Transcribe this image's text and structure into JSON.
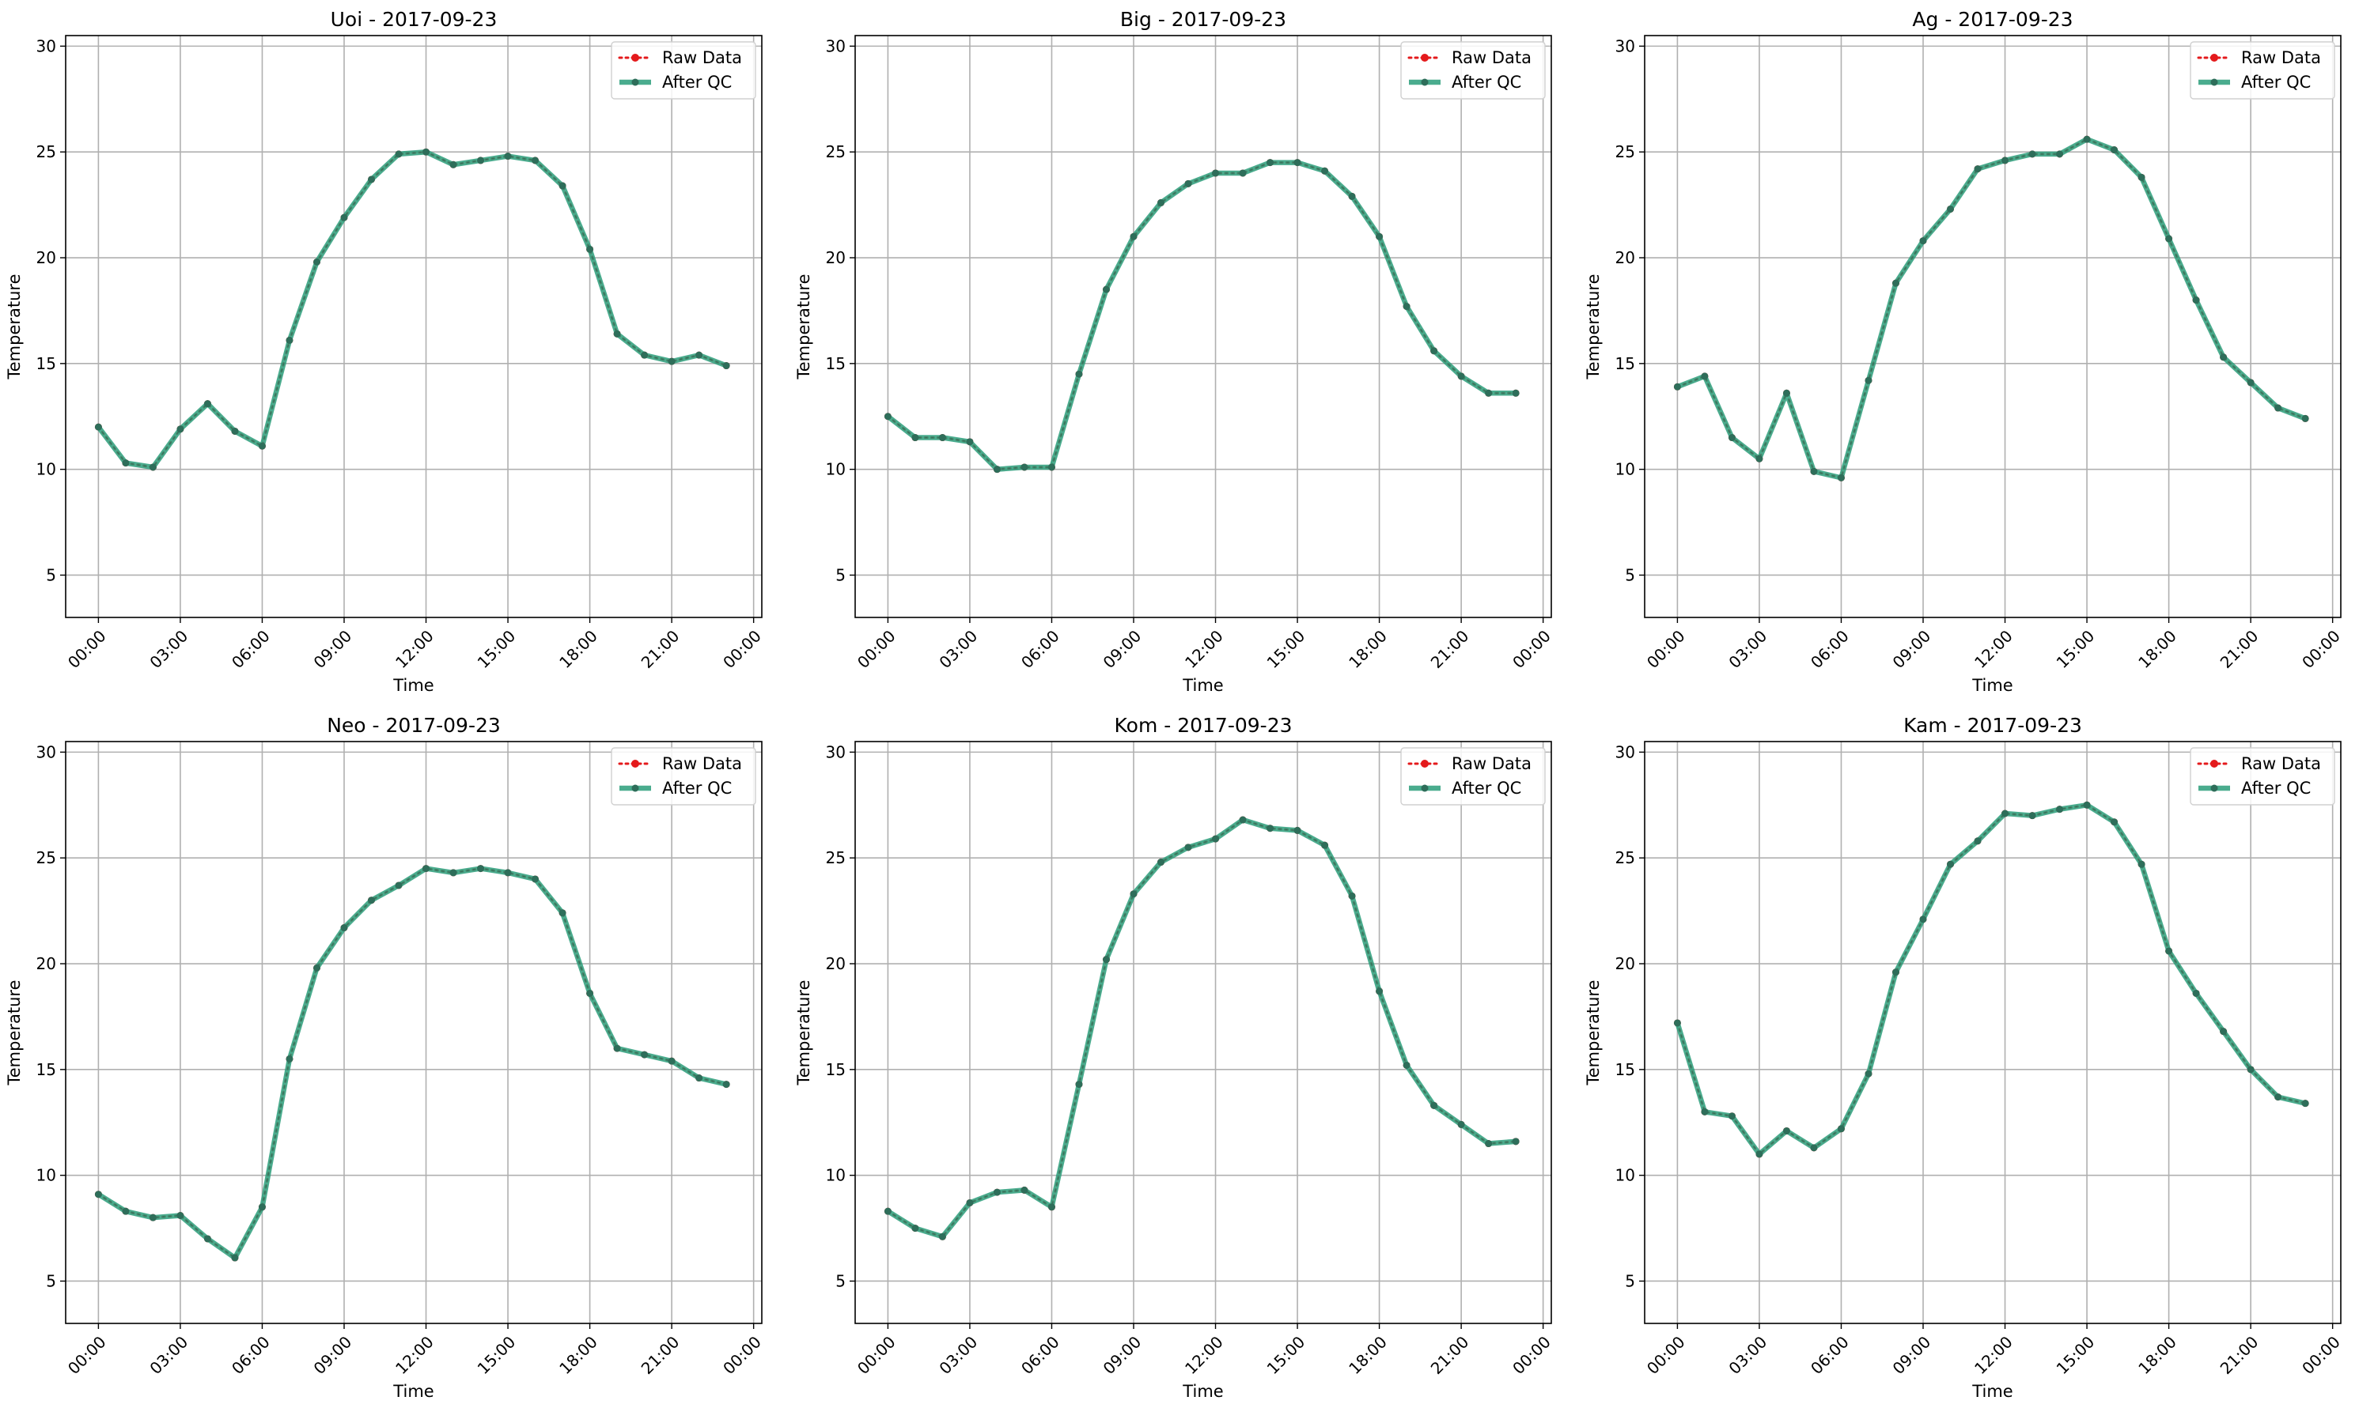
{
  "colors": {
    "raw": "#e41a1c",
    "qc": "#2a9d7a",
    "qc_marker": "#2e6e5a",
    "grid": "#b0b0b0",
    "axes": "#000000",
    "legend_border": "#d0d0d0"
  },
  "chart_data": [
    {
      "type": "line",
      "title": "Uoi - 2017-09-23",
      "xlabel": "Time",
      "ylabel": "Temperature",
      "ylim": [
        3,
        30.5
      ],
      "xlim_hours": [
        -1.2,
        24.3
      ],
      "grid": true,
      "legend_position": "top-right",
      "x_ticks": [
        "00:00",
        "03:00",
        "06:00",
        "09:00",
        "12:00",
        "15:00",
        "18:00",
        "21:00",
        "00:00"
      ],
      "y_ticks": [
        "5",
        "10",
        "15",
        "20",
        "25",
        "30"
      ],
      "x": [
        "00:00",
        "01:00",
        "02:00",
        "03:00",
        "04:00",
        "05:00",
        "06:00",
        "07:00",
        "08:00",
        "09:00",
        "10:00",
        "11:00",
        "12:00",
        "13:00",
        "14:00",
        "15:00",
        "16:00",
        "17:00",
        "18:00",
        "19:00",
        "20:00",
        "21:00",
        "22:00",
        "23:00"
      ],
      "series": [
        {
          "name": "Raw Data",
          "values": [
            12.0,
            10.3,
            10.1,
            11.9,
            13.1,
            11.8,
            11.1,
            16.1,
            19.8,
            21.9,
            23.7,
            24.9,
            25.0,
            24.4,
            24.6,
            24.8,
            24.6,
            23.4,
            20.4,
            16.4,
            15.4,
            15.1,
            15.4,
            14.9
          ]
        },
        {
          "name": "After QC",
          "values": [
            12.0,
            10.3,
            10.1,
            11.9,
            13.1,
            11.8,
            11.1,
            16.1,
            19.8,
            21.9,
            23.7,
            24.9,
            25.0,
            24.4,
            24.6,
            24.8,
            24.6,
            23.4,
            20.4,
            16.4,
            15.4,
            15.1,
            15.4,
            14.9
          ]
        }
      ]
    },
    {
      "type": "line",
      "title": "Big - 2017-09-23",
      "xlabel": "Time",
      "ylabel": "Temperature",
      "ylim": [
        3,
        30.5
      ],
      "xlim_hours": [
        -1.2,
        24.3
      ],
      "grid": true,
      "legend_position": "top-right",
      "x_ticks": [
        "00:00",
        "03:00",
        "06:00",
        "09:00",
        "12:00",
        "15:00",
        "18:00",
        "21:00",
        "00:00"
      ],
      "y_ticks": [
        "5",
        "10",
        "15",
        "20",
        "25",
        "30"
      ],
      "x": [
        "00:00",
        "01:00",
        "02:00",
        "03:00",
        "04:00",
        "05:00",
        "06:00",
        "07:00",
        "08:00",
        "09:00",
        "10:00",
        "11:00",
        "12:00",
        "13:00",
        "14:00",
        "15:00",
        "16:00",
        "17:00",
        "18:00",
        "19:00",
        "20:00",
        "21:00",
        "22:00",
        "23:00"
      ],
      "series": [
        {
          "name": "Raw Data",
          "values": [
            12.5,
            11.5,
            11.5,
            11.3,
            10.0,
            10.1,
            10.1,
            14.5,
            18.5,
            21.0,
            22.6,
            23.5,
            24.0,
            24.0,
            24.5,
            24.5,
            24.1,
            22.9,
            21.0,
            17.7,
            15.6,
            14.4,
            13.6,
            13.6
          ]
        },
        {
          "name": "After QC",
          "values": [
            12.5,
            11.5,
            11.5,
            11.3,
            10.0,
            10.1,
            10.1,
            14.5,
            18.5,
            21.0,
            22.6,
            23.5,
            24.0,
            24.0,
            24.5,
            24.5,
            24.1,
            22.9,
            21.0,
            17.7,
            15.6,
            14.4,
            13.6,
            13.6
          ]
        }
      ]
    },
    {
      "type": "line",
      "title": "Ag - 2017-09-23",
      "xlabel": "Time",
      "ylabel": "Temperature",
      "ylim": [
        3,
        30.5
      ],
      "xlim_hours": [
        -1.2,
        24.3
      ],
      "grid": true,
      "legend_position": "top-right",
      "x_ticks": [
        "00:00",
        "03:00",
        "06:00",
        "09:00",
        "12:00",
        "15:00",
        "18:00",
        "21:00",
        "00:00"
      ],
      "y_ticks": [
        "5",
        "10",
        "15",
        "20",
        "25",
        "30"
      ],
      "x": [
        "00:00",
        "01:00",
        "02:00",
        "03:00",
        "04:00",
        "05:00",
        "06:00",
        "07:00",
        "08:00",
        "09:00",
        "10:00",
        "11:00",
        "12:00",
        "13:00",
        "14:00",
        "15:00",
        "16:00",
        "17:00",
        "18:00",
        "19:00",
        "20:00",
        "21:00",
        "22:00",
        "23:00"
      ],
      "series": [
        {
          "name": "Raw Data",
          "values": [
            13.9,
            14.4,
            11.5,
            10.5,
            13.6,
            9.9,
            9.6,
            14.2,
            18.8,
            20.8,
            22.3,
            24.2,
            24.6,
            24.9,
            24.9,
            25.6,
            25.1,
            23.8,
            20.9,
            18.0,
            15.3,
            14.1,
            12.9,
            12.4
          ]
        },
        {
          "name": "After QC",
          "values": [
            13.9,
            14.4,
            11.5,
            10.5,
            13.6,
            9.9,
            9.6,
            14.2,
            18.8,
            20.8,
            22.3,
            24.2,
            24.6,
            24.9,
            24.9,
            25.6,
            25.1,
            23.8,
            20.9,
            18.0,
            15.3,
            14.1,
            12.9,
            12.4
          ]
        }
      ]
    },
    {
      "type": "line",
      "title": "Neo - 2017-09-23",
      "xlabel": "Time",
      "ylabel": "Temperature",
      "ylim": [
        3,
        30.5
      ],
      "xlim_hours": [
        -1.2,
        24.3
      ],
      "grid": true,
      "legend_position": "top-right",
      "x_ticks": [
        "00:00",
        "03:00",
        "06:00",
        "09:00",
        "12:00",
        "15:00",
        "18:00",
        "21:00",
        "00:00"
      ],
      "y_ticks": [
        "5",
        "10",
        "15",
        "20",
        "25",
        "30"
      ],
      "x": [
        "00:00",
        "01:00",
        "02:00",
        "03:00",
        "04:00",
        "05:00",
        "06:00",
        "07:00",
        "08:00",
        "09:00",
        "10:00",
        "11:00",
        "12:00",
        "13:00",
        "14:00",
        "15:00",
        "16:00",
        "17:00",
        "18:00",
        "19:00",
        "20:00",
        "21:00",
        "22:00",
        "23:00"
      ],
      "series": [
        {
          "name": "Raw Data",
          "values": [
            9.1,
            8.3,
            8.0,
            8.1,
            7.0,
            6.1,
            8.5,
            15.5,
            19.8,
            21.7,
            23.0,
            23.7,
            24.5,
            24.3,
            24.5,
            24.3,
            24.0,
            22.4,
            18.6,
            16.0,
            15.7,
            15.4,
            14.6,
            14.3
          ]
        },
        {
          "name": "After QC",
          "values": [
            9.1,
            8.3,
            8.0,
            8.1,
            7.0,
            6.1,
            8.5,
            15.5,
            19.8,
            21.7,
            23.0,
            23.7,
            24.5,
            24.3,
            24.5,
            24.3,
            24.0,
            22.4,
            18.6,
            16.0,
            15.7,
            15.4,
            14.6,
            14.3
          ]
        }
      ]
    },
    {
      "type": "line",
      "title": "Kom - 2017-09-23",
      "xlabel": "Time",
      "ylabel": "Temperature",
      "ylim": [
        3,
        30.5
      ],
      "xlim_hours": [
        -1.2,
        24.3
      ],
      "grid": true,
      "legend_position": "top-right",
      "x_ticks": [
        "00:00",
        "03:00",
        "06:00",
        "09:00",
        "12:00",
        "15:00",
        "18:00",
        "21:00",
        "00:00"
      ],
      "y_ticks": [
        "5",
        "10",
        "15",
        "20",
        "25",
        "30"
      ],
      "x": [
        "00:00",
        "01:00",
        "02:00",
        "03:00",
        "04:00",
        "05:00",
        "06:00",
        "07:00",
        "08:00",
        "09:00",
        "10:00",
        "11:00",
        "12:00",
        "13:00",
        "14:00",
        "15:00",
        "16:00",
        "17:00",
        "18:00",
        "19:00",
        "20:00",
        "21:00",
        "22:00",
        "23:00"
      ],
      "series": [
        {
          "name": "Raw Data",
          "values": [
            8.3,
            7.5,
            7.1,
            8.7,
            9.2,
            9.3,
            8.5,
            14.3,
            20.2,
            23.3,
            24.8,
            25.5,
            25.9,
            26.8,
            26.4,
            26.3,
            25.6,
            23.2,
            18.7,
            15.2,
            13.3,
            12.4,
            11.5,
            11.6
          ]
        },
        {
          "name": "After QC",
          "values": [
            8.3,
            7.5,
            7.1,
            8.7,
            9.2,
            9.3,
            8.5,
            14.3,
            20.2,
            23.3,
            24.8,
            25.5,
            25.9,
            26.8,
            26.4,
            26.3,
            25.6,
            23.2,
            18.7,
            15.2,
            13.3,
            12.4,
            11.5,
            11.6
          ]
        }
      ]
    },
    {
      "type": "line",
      "title": "Kam - 2017-09-23",
      "xlabel": "Time",
      "ylabel": "Temperature",
      "ylim": [
        3,
        30.5
      ],
      "xlim_hours": [
        -1.2,
        24.3
      ],
      "grid": true,
      "legend_position": "top-right",
      "x_ticks": [
        "00:00",
        "03:00",
        "06:00",
        "09:00",
        "12:00",
        "15:00",
        "18:00",
        "21:00",
        "00:00"
      ],
      "y_ticks": [
        "5",
        "10",
        "15",
        "20",
        "25",
        "30"
      ],
      "x": [
        "00:00",
        "01:00",
        "02:00",
        "03:00",
        "04:00",
        "05:00",
        "06:00",
        "07:00",
        "08:00",
        "09:00",
        "10:00",
        "11:00",
        "12:00",
        "13:00",
        "14:00",
        "15:00",
        "16:00",
        "17:00",
        "18:00",
        "19:00",
        "20:00",
        "21:00",
        "22:00",
        "23:00"
      ],
      "series": [
        {
          "name": "Raw Data",
          "values": [
            17.2,
            13.0,
            12.8,
            11.0,
            12.1,
            11.3,
            12.2,
            14.8,
            19.6,
            22.1,
            24.7,
            25.8,
            27.1,
            27.0,
            27.3,
            27.5,
            26.7,
            24.7,
            20.6,
            18.6,
            16.8,
            15.0,
            13.7,
            13.4
          ]
        },
        {
          "name": "After QC",
          "values": [
            17.2,
            13.0,
            12.8,
            11.0,
            12.1,
            11.3,
            12.2,
            14.8,
            19.6,
            22.1,
            24.7,
            25.8,
            27.1,
            27.0,
            27.3,
            27.5,
            26.7,
            24.7,
            20.6,
            18.6,
            16.8,
            15.0,
            13.7,
            13.4
          ]
        }
      ]
    }
  ]
}
